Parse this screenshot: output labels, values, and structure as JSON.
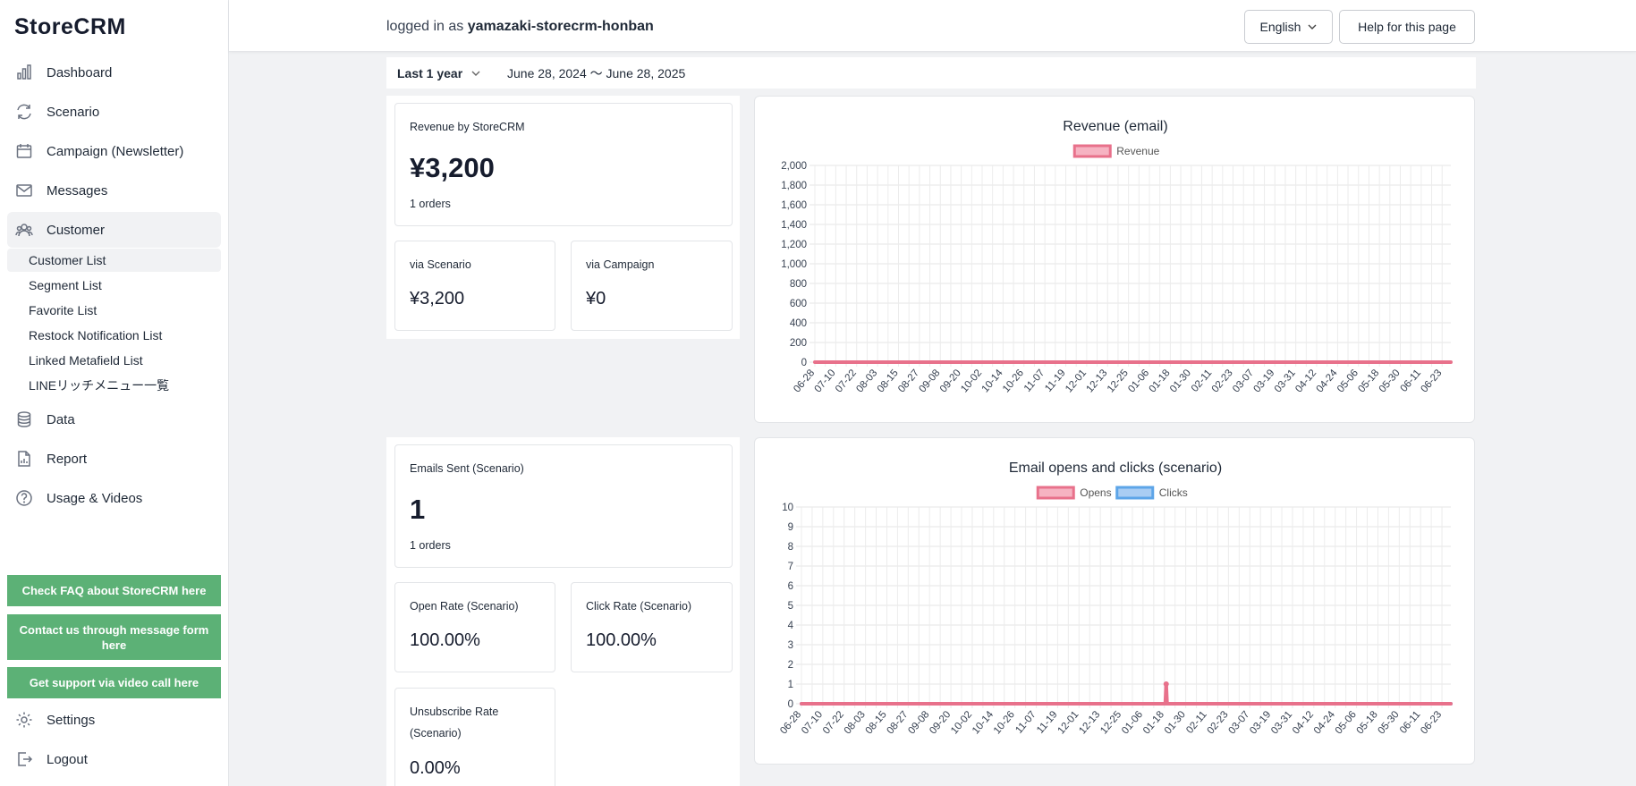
{
  "app": {
    "logo": "StoreCRM"
  },
  "sidebar": {
    "items": [
      {
        "label": "Dashboard",
        "icon": "bar-chart-icon"
      },
      {
        "label": "Scenario",
        "icon": "refresh-icon"
      },
      {
        "label": "Campaign (Newsletter)",
        "icon": "calendar-icon"
      },
      {
        "label": "Messages",
        "icon": "mail-icon"
      },
      {
        "label": "Customer",
        "icon": "users-icon",
        "active": true
      },
      {
        "label": "Data",
        "icon": "database-icon"
      },
      {
        "label": "Report",
        "icon": "document-chart-icon"
      },
      {
        "label": "Usage & Videos",
        "icon": "question-circle-icon"
      }
    ],
    "customer_sub": [
      {
        "label": "Customer List",
        "active": true
      },
      {
        "label": "Segment List"
      },
      {
        "label": "Favorite List"
      },
      {
        "label": "Restock Notification List"
      },
      {
        "label": "Linked Metafield List"
      },
      {
        "label": "LINEリッチメニュー一覧"
      }
    ],
    "buttons": [
      "Check FAQ about StoreCRM here",
      "Contact us through message form here",
      "Get support via video call here"
    ],
    "settings": "Settings",
    "logout": "Logout",
    "button_color": "#5cb176"
  },
  "header": {
    "logged_prefix": "logged in as ",
    "username": "yamazaki-storecrm-honban",
    "language": "English",
    "help": "Help for this page"
  },
  "period": {
    "selected": "Last 1 year",
    "range": "June 28, 2024 〜 June 28, 2025"
  },
  "revenue_summary": {
    "title": "Revenue by StoreCRM",
    "value": "¥3,200",
    "orders": "1 orders",
    "via_scenario_label": "via Scenario",
    "via_scenario_value": "¥3,200",
    "via_campaign_label": "via Campaign",
    "via_campaign_value": "¥0"
  },
  "email_summary": {
    "sent_label": "Emails Sent (Scenario)",
    "sent_value": "1",
    "orders": "1 orders",
    "open_rate_label": "Open Rate (Scenario)",
    "open_rate_value": "100.00%",
    "click_rate_label": "Click Rate (Scenario)",
    "click_rate_value": "100.00%",
    "unsub_label": "Unsubscribe Rate (Scenario)",
    "unsub_value": "0.00%"
  },
  "chart_data": [
    {
      "type": "line",
      "title": "Revenue (email)",
      "x_tick_labels": [
        "06-28",
        "07-10",
        "07-22",
        "08-03",
        "08-15",
        "08-27",
        "09-08",
        "09-20",
        "10-02",
        "10-14",
        "10-26",
        "11-07",
        "11-19",
        "12-01",
        "12-13",
        "12-25",
        "01-06",
        "01-18",
        "01-30",
        "02-11",
        "02-23",
        "03-07",
        "03-19",
        "03-31",
        "04-12",
        "04-24",
        "05-06",
        "05-18",
        "05-30",
        "06-11",
        "06-23"
      ],
      "ylim": [
        0,
        2000
      ],
      "yticks": [
        0,
        200,
        400,
        600,
        800,
        1000,
        1200,
        1400,
        1600,
        1800,
        2000
      ],
      "grid": true,
      "legend_position": "top",
      "series": [
        {
          "name": "Revenue",
          "color": "#e8718b",
          "fill": "#f6b3c2",
          "spikes": []
        }
      ]
    },
    {
      "type": "line",
      "title": "Email opens and clicks (scenario)",
      "x_tick_labels": [
        "06-28",
        "07-10",
        "07-22",
        "08-03",
        "08-15",
        "08-27",
        "09-08",
        "09-20",
        "10-02",
        "10-14",
        "10-26",
        "11-07",
        "11-19",
        "12-01",
        "12-13",
        "12-25",
        "01-06",
        "01-18",
        "01-30",
        "02-11",
        "02-23",
        "03-07",
        "03-19",
        "03-31",
        "04-12",
        "04-24",
        "05-06",
        "05-18",
        "05-30",
        "06-11",
        "06-23"
      ],
      "ylim": [
        0,
        10
      ],
      "yticks": [
        0,
        1,
        2,
        3,
        4,
        5,
        6,
        7,
        8,
        9,
        10
      ],
      "grid": true,
      "legend_position": "top",
      "series": [
        {
          "name": "Opens",
          "color": "#e8718b",
          "fill": "#f6b3c2",
          "spikes": [
            {
              "date": "01-19",
              "value": 1
            }
          ]
        },
        {
          "name": "Clicks",
          "color": "#5da5e8",
          "fill": "#a9cdf3",
          "spikes": []
        }
      ]
    }
  ]
}
